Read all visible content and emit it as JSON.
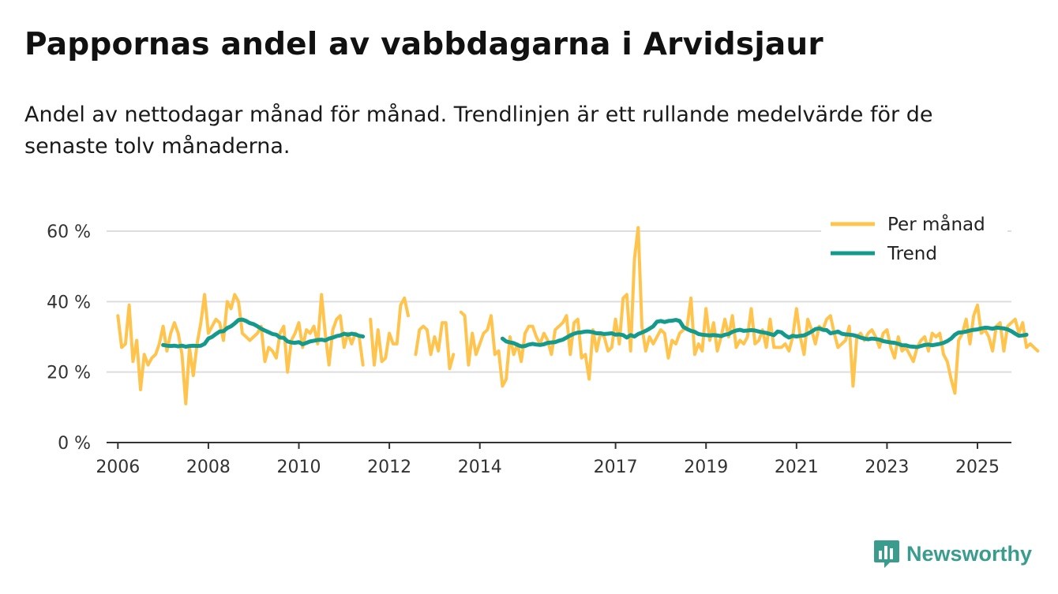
{
  "title": "Pappornas andel av vabbdagarna i Arvidsjaur",
  "subtitle": "Andel av nettodagar månad för månad. Trendlinjen är ett rullande medelvärde för de senaste tolv månaderna.",
  "brand": {
    "name": "Newsworthy",
    "icon": "bar-chart-logo-icon"
  },
  "colors": {
    "monthly": "#ffc44d",
    "trend": "#149a8c",
    "grid": "#dddddd",
    "axis": "#333333",
    "brand": "#3a9c8c"
  },
  "chart_data": {
    "type": "line",
    "title": "Pappornas andel av vabbdagarna i Arvidsjaur",
    "xlabel": "",
    "ylabel": "",
    "ylim": [
      0,
      60
    ],
    "xlim": [
      2005.75,
      2025.75
    ],
    "y_ticks": [
      0,
      20,
      40,
      60
    ],
    "y_tick_labels": [
      "0 %",
      "20 %",
      "40 %",
      "60 %"
    ],
    "x_ticks": [
      2006,
      2008,
      2010,
      2012,
      2014,
      2017,
      2019,
      2021,
      2023,
      2025
    ],
    "x_tick_labels": [
      "2006",
      "2008",
      "2010",
      "2012",
      "2014",
      "2017",
      "2019",
      "2021",
      "2023",
      "2025"
    ],
    "grid": true,
    "legend": {
      "placement": "top-right",
      "entries": [
        "Per månad",
        "Trend"
      ]
    },
    "x_start": 2006.0,
    "x_step": 0.0833333,
    "series": [
      {
        "name": "Per månad",
        "color": "#ffc44d",
        "values": [
          36,
          27,
          28,
          39,
          23,
          29,
          15,
          25,
          22,
          24,
          25,
          28,
          33,
          26,
          31,
          34,
          31,
          25,
          11,
          27,
          19,
          28,
          34,
          42,
          31,
          33,
          35,
          34,
          29,
          40,
          38,
          42,
          40,
          31,
          30,
          29,
          30,
          31,
          33,
          23,
          27,
          26,
          24,
          31,
          33,
          20,
          29,
          31,
          34,
          27,
          32,
          31,
          33,
          28,
          42,
          31,
          22,
          32,
          35,
          36,
          27,
          31,
          28,
          31,
          30,
          22,
          null,
          35,
          22,
          32,
          23,
          24,
          31,
          28,
          28,
          39,
          41,
          36,
          null,
          25,
          32,
          33,
          32,
          25,
          30,
          26,
          34,
          34,
          21,
          25,
          null,
          37,
          36,
          22,
          31,
          25,
          28,
          31,
          32,
          36,
          25,
          26,
          16,
          18,
          30,
          25,
          28,
          23,
          31,
          33,
          33,
          30,
          28,
          31,
          29,
          25,
          32,
          33,
          34,
          36,
          25,
          34,
          35,
          24,
          25,
          18,
          32,
          26,
          31,
          30,
          26,
          27,
          35,
          28,
          41,
          42,
          26,
          52,
          61,
          33,
          26,
          30,
          28,
          30,
          32,
          31,
          24,
          29,
          28,
          31,
          32,
          33,
          41,
          25,
          28,
          26,
          38,
          29,
          34,
          26,
          30,
          35,
          30,
          36,
          27,
          29,
          28,
          30,
          38,
          28,
          29,
          32,
          27,
          35,
          27,
          27,
          27,
          28,
          26,
          30,
          38,
          30,
          25,
          35,
          32,
          28,
          33,
          32,
          35,
          36,
          31,
          27,
          28,
          29,
          33,
          16,
          30,
          31,
          29,
          31,
          32,
          30,
          27,
          31,
          32,
          27,
          24,
          30,
          26,
          27,
          25,
          23,
          27,
          29,
          30,
          26,
          31,
          30,
          31,
          25,
          23,
          18,
          14,
          29,
          31,
          35,
          28,
          36,
          39,
          31,
          32,
          30,
          26,
          33,
          34,
          26,
          33,
          34,
          35,
          31,
          34,
          27,
          28,
          27,
          26
        ]
      },
      {
        "name": "Trend",
        "color": "#149a8c",
        "values": [
          null,
          null,
          null,
          null,
          null,
          null,
          null,
          null,
          null,
          null,
          null,
          null,
          27.7,
          27.5,
          27.4,
          27.5,
          27.3,
          27.5,
          27.2,
          27.4,
          27.5,
          27.4,
          27.5,
          28.0,
          29.5,
          30.0,
          30.8,
          31.5,
          31.6,
          32.5,
          33.0,
          33.8,
          34.8,
          34.9,
          34.5,
          33.9,
          33.6,
          33.0,
          32.3,
          31.8,
          31.3,
          30.8,
          30.6,
          29.8,
          29.7,
          28.7,
          28.4,
          28.3,
          28.5,
          27.9,
          28.3,
          28.7,
          28.9,
          29.1,
          29.2,
          29.0,
          29.5,
          29.8,
          30.2,
          30.4,
          30.9,
          30.6,
          30.9,
          30.7,
          30.3,
          30.1,
          null,
          null,
          null,
          null,
          null,
          null,
          null,
          null,
          null,
          null,
          null,
          null,
          null,
          null,
          null,
          null,
          null,
          null,
          null,
          null,
          null,
          null,
          null,
          null,
          null,
          null,
          null,
          null,
          null,
          null,
          null,
          null,
          null,
          null,
          null,
          null,
          29.5,
          28.7,
          28.4,
          28.2,
          27.7,
          27.3,
          27.4,
          27.8,
          28.0,
          27.8,
          27.7,
          27.9,
          28.3,
          28.4,
          28.5,
          28.9,
          29.2,
          29.8,
          30.4,
          30.9,
          31.2,
          31.3,
          31.5,
          31.5,
          31.3,
          31.0,
          31.0,
          30.8,
          30.9,
          31.0,
          30.6,
          30.7,
          30.5,
          29.8,
          30.5,
          30.1,
          30.8,
          31.2,
          31.7,
          32.3,
          33.0,
          34.3,
          34.5,
          34.2,
          34.5,
          34.6,
          34.8,
          34.5,
          32.8,
          32.2,
          31.7,
          31.4,
          30.8,
          30.6,
          30.5,
          30.4,
          30.5,
          30.4,
          30.2,
          30.6,
          30.8,
          31.4,
          31.8,
          32.0,
          31.7,
          31.8,
          31.9,
          31.8,
          31.5,
          31.3,
          31.1,
          30.8,
          30.5,
          31.5,
          31.3,
          30.4,
          29.8,
          30.3,
          30.1,
          30.3,
          30.4,
          30.9,
          31.5,
          32.2,
          32.4,
          32.0,
          31.9,
          31.0,
          31.2,
          31.5,
          30.9,
          30.7,
          30.6,
          30.5,
          30.2,
          29.8,
          29.5,
          29.3,
          29.5,
          29.4,
          29.2,
          28.8,
          28.6,
          28.4,
          28.3,
          28.0,
          27.6,
          27.6,
          27.3,
          27.2,
          27.1,
          27.4,
          27.7,
          27.8,
          27.6,
          27.8,
          28.0,
          28.3,
          28.8,
          29.5,
          30.6,
          31.2,
          31.3,
          31.5,
          31.8,
          32.0,
          32.1,
          32.4,
          32.6,
          32.5,
          32.3,
          32.6,
          32.5,
          32.4,
          32.1,
          31.6,
          30.9,
          30.3,
          30.4,
          30.6
        ]
      }
    ]
  }
}
